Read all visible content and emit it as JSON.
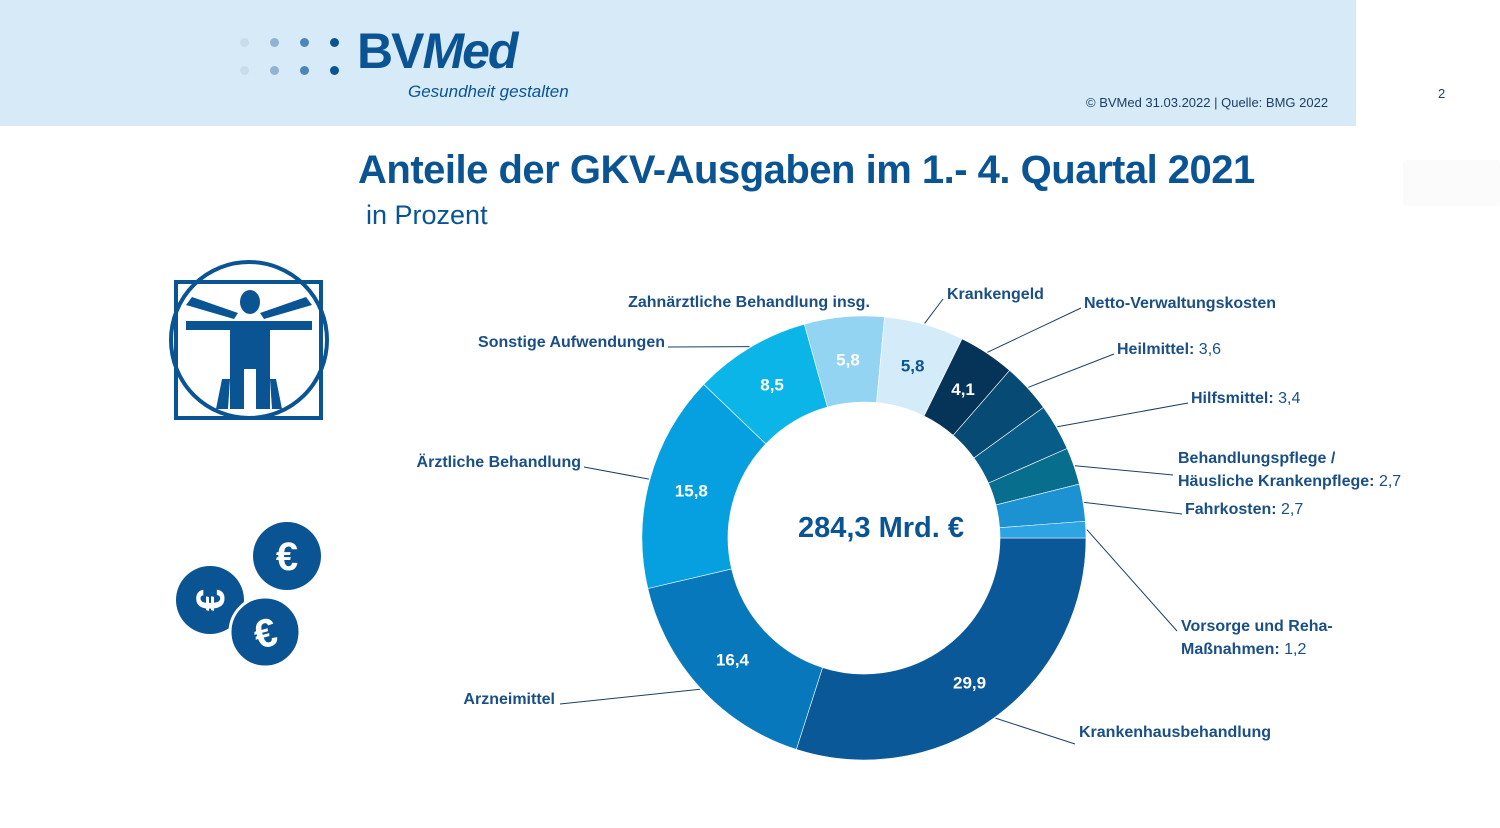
{
  "header": {
    "logo_text_plain": "BV",
    "logo_text_emph": "Med",
    "logo_tagline": "Gesundheit gestalten",
    "source": "© BVMed 31.03.2022 | Quelle: BMG 2022",
    "page_number": "2"
  },
  "colors": {
    "brand": "#0a5494",
    "header_band": "#d6eaf8",
    "leader_line": "#1d3f63"
  },
  "icons": {
    "logo_dots": "logo-dots-icon",
    "vitruvian": "vitruvian-man-icon",
    "coins": "euro-coins-icon"
  },
  "chart_data": {
    "type": "pie",
    "variant": "donut",
    "title": "Anteile der GKV-Ausgaben im 1.- 4. Quartal 2021",
    "subtitle": "in Prozent",
    "center_label": "284,3 Mrd. €",
    "start": "3 o'clock, clockwise",
    "slices": [
      {
        "name": "Krankenhausbehandlung",
        "value": 29.9,
        "display": "29,9",
        "color": "#0a5898",
        "value_inside": true,
        "value_color": "#ffffff"
      },
      {
        "name": "Arzneimittel",
        "value": 16.4,
        "display": "16,4",
        "color": "#0778bb",
        "value_inside": true,
        "value_color": "#ffffff"
      },
      {
        "name": "Ärztliche Behandlung",
        "value": 15.8,
        "display": "15,8",
        "color": "#06a0e0",
        "value_inside": true,
        "value_color": "#ffffff"
      },
      {
        "name": "Sonstige Aufwendungen",
        "value": 8.5,
        "display": "8,5",
        "color": "#0cb5e8",
        "value_inside": true,
        "value_color": "#ffffff"
      },
      {
        "name": "Zahnärztliche Behandlung insg.",
        "value": 5.8,
        "display": "5,8",
        "color": "#92d4f1",
        "value_inside": true,
        "value_color": "#ffffff"
      },
      {
        "name": "Krankengeld",
        "value": 5.8,
        "display": "5,8",
        "color": "#d4ebf9",
        "value_inside": true,
        "value_color": "#0a5494"
      },
      {
        "name": "Netto-Verwaltungskosten",
        "value": 4.1,
        "display": "4,1",
        "color": "#063358",
        "value_inside": true,
        "value_color": "#ffffff"
      },
      {
        "name": "Heilmittel",
        "value": 3.6,
        "display": "3,6",
        "color": "#074a74",
        "value_inside": false
      },
      {
        "name": "Hilfsmittel",
        "value": 3.4,
        "display": "3,4",
        "color": "#075d88",
        "value_inside": false
      },
      {
        "name": "Behandlungspflege / Häusliche Krankenpflege",
        "value": 2.7,
        "display": "2,7",
        "color": "#086e8e",
        "value_inside": false
      },
      {
        "name": "Fahrkosten",
        "value": 2.7,
        "display": "2,7",
        "color": "#1c92d2",
        "value_inside": false
      },
      {
        "name": "Vorsorge und Reha-Maßnahmen",
        "value": 1.2,
        "display": "1,2",
        "color": "#2ea5e2",
        "value_inside": false
      }
    ],
    "labels": [
      {
        "slice": 0,
        "lines": [
          "Krankenhausbehandlung"
        ],
        "suffix": ""
      },
      {
        "slice": 1,
        "lines": [
          "Arzneimittel"
        ],
        "suffix": ""
      },
      {
        "slice": 2,
        "lines": [
          "Ärztliche Behandlung"
        ],
        "suffix": ""
      },
      {
        "slice": 3,
        "lines": [
          "Sonstige Aufwendungen"
        ],
        "suffix": ""
      },
      {
        "slice": 4,
        "lines": [
          "Zahnärztliche Behandlung insg."
        ],
        "suffix": ""
      },
      {
        "slice": 5,
        "lines": [
          "Krankengeld"
        ],
        "suffix": ""
      },
      {
        "slice": 6,
        "lines": [
          "Netto-Verwaltungskosten"
        ],
        "suffix": ""
      },
      {
        "slice": 7,
        "lines": [
          "Heilmittel:"
        ],
        "suffix": "3,6"
      },
      {
        "slice": 8,
        "lines": [
          "Hilfsmittel:"
        ],
        "suffix": "3,4"
      },
      {
        "slice": 9,
        "lines": [
          "Behandlungspflege /",
          "Häusliche Krankenpflege:"
        ],
        "suffix": "2,7"
      },
      {
        "slice": 10,
        "lines": [
          "Fahrkosten:"
        ],
        "suffix": "2,7"
      },
      {
        "slice": 11,
        "lines": [
          "Vorsorge und Reha-",
          "Maßnahmen:"
        ],
        "suffix": "1,2"
      }
    ],
    "unit": "Prozent",
    "total": "284,3 Mrd. €"
  }
}
